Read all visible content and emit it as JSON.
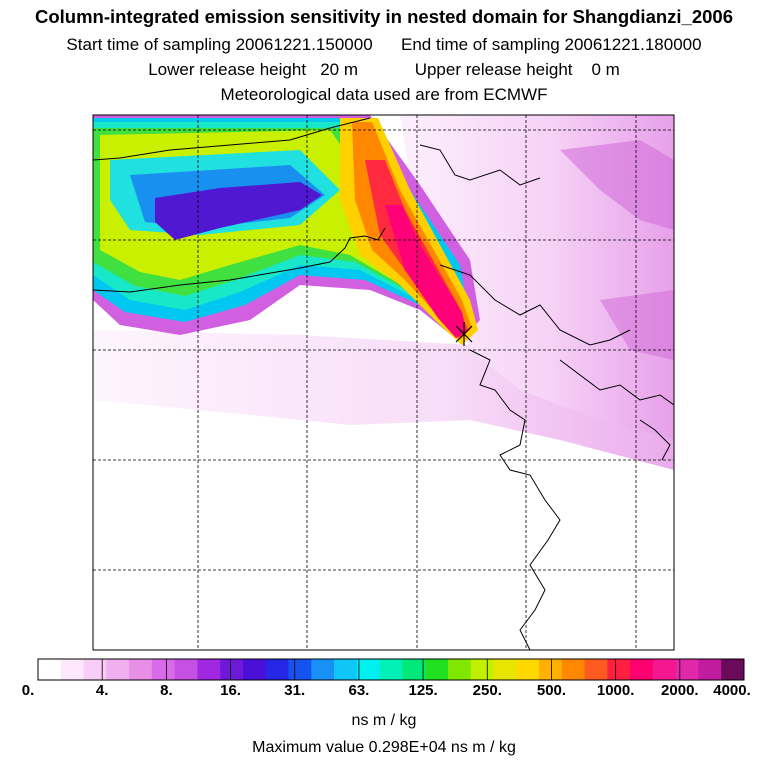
{
  "header": {
    "title": "Column-integrated emission sensitivity in nested domain for Shangdianzi_2006",
    "start_label": "Start time of sampling",
    "start_value": "20061221.150000",
    "end_label": "End time of sampling",
    "end_value": "20061221.180000",
    "lower_label": "Lower release height",
    "lower_value": "20 m",
    "upper_label": "Upper release height",
    "upper_value": "0 m",
    "met_text": "Meteorological data used are from ECMWF"
  },
  "legend": {
    "ticks": [
      "0.",
      "4.",
      "8.",
      "16.",
      "31.",
      "63.",
      "125.",
      "250.",
      "500.",
      "1000.",
      "2000.",
      "4000."
    ],
    "unit": "ns m / kg",
    "max_text": "Maximum value  0.298E+04 ns m / kg"
  },
  "colors": {
    "scale": [
      "#ffffff",
      "#fde8fd",
      "#f8cef8",
      "#f0b0f0",
      "#e78ee7",
      "#d96bea",
      "#c64fe4",
      "#a028e0",
      "#7018d8",
      "#4a10d8",
      "#2626e6",
      "#1652f0",
      "#1890f8",
      "#10c6f8",
      "#00f0f0",
      "#00f0b8",
      "#00e878",
      "#20e020",
      "#80e800",
      "#c0f000",
      "#e6e600",
      "#ffd800",
      "#ffb000",
      "#ff8800",
      "#ff5a20",
      "#ff2040",
      "#ff0070",
      "#f41890",
      "#e028a8",
      "#c01ca0",
      "#6a0a5a"
    ],
    "plume_low": "#fbe3fb",
    "plume_mid": "#d85ad8",
    "background_tint": "#f4ccf4"
  }
}
